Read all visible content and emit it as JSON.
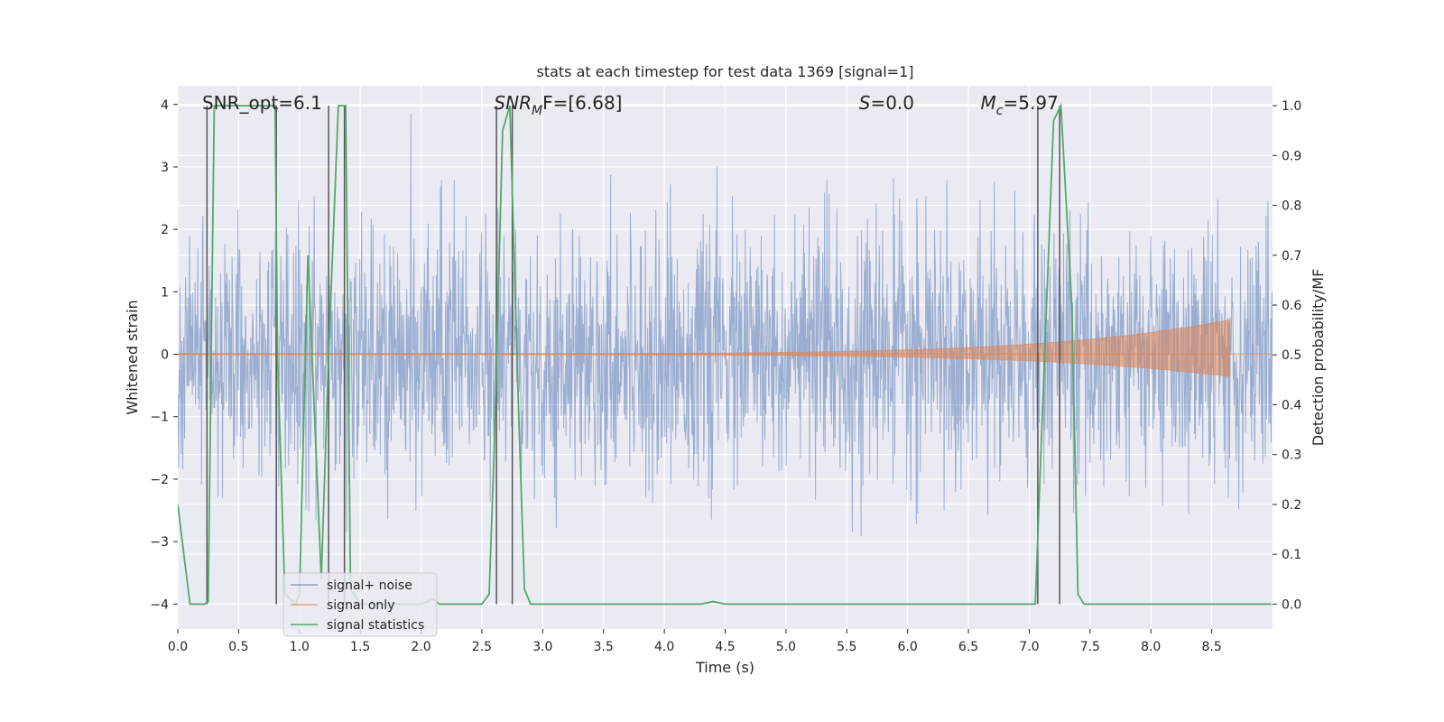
{
  "chart_data": {
    "type": "line",
    "title": "stats at each timestep for test data 1369 [signal=1]",
    "xlabel": "Time (s)",
    "ylabel": "Whitened strain",
    "ylabel_right": "Detection probability/MF",
    "xlim": [
      0.0,
      9.0
    ],
    "ylim": [
      -4.4,
      4.3
    ],
    "ylim_right": [
      -0.05,
      1.04
    ],
    "xticks": [
      0.0,
      0.5,
      1.0,
      1.5,
      2.0,
      2.5,
      3.0,
      3.5,
      4.0,
      4.5,
      5.0,
      5.5,
      6.0,
      6.5,
      7.0,
      7.5,
      8.0,
      8.5
    ],
    "xtick_labels": [
      "0.0",
      "0.5",
      "1.0",
      "1.5",
      "2.0",
      "2.5",
      "3.0",
      "3.5",
      "4.0",
      "4.5",
      "5.0",
      "5.5",
      "6.0",
      "6.5",
      "7.0",
      "7.5",
      "8.0",
      "8.5"
    ],
    "yticks": [
      -4,
      -3,
      -2,
      -1,
      0,
      1,
      2,
      3,
      4
    ],
    "ytick_labels": [
      "−4",
      "−3",
      "−2",
      "−1",
      "0",
      "1",
      "2",
      "3",
      "4"
    ],
    "yticks_right": [
      0.0,
      0.1,
      0.2,
      0.3,
      0.4,
      0.5,
      0.6,
      0.7,
      0.8,
      0.9,
      1.0
    ],
    "ytick_labels_right": [
      "0.0",
      "0.1",
      "0.2",
      "0.3",
      "0.4",
      "0.5",
      "0.6",
      "0.7",
      "0.8",
      "0.9",
      "1.0"
    ],
    "grid": true,
    "legend_position": "lower-left",
    "annotations": [
      {
        "text": "SNR_opt=6.1",
        "x": 0.2
      },
      {
        "text_main": "SNR",
        "text_sub": "M",
        "text_rest": "F=[6.68]",
        "x": 2.6
      },
      {
        "text_main": "S",
        "text_sub": "",
        "text_rest": "=0.0",
        "x": 5.6
      },
      {
        "text_main": "M",
        "text_sub": "c",
        "text_rest": "=5.97",
        "x": 6.6
      }
    ],
    "series": [
      {
        "name": "signal+ noise",
        "color": "#4c72b0",
        "style": "dense noise, std about 1.0, peaks between -4.0 and 3.9",
        "time_range": [
          0.0,
          9.0
        ]
      },
      {
        "name": "signal only",
        "color": "#dd8452",
        "style": "chirp, amplitude growing from 0.0 to 0.55, ending at 8.65",
        "time_range": [
          0.0,
          8.65
        ]
      },
      {
        "name": "signal statistics",
        "color": "#55a868",
        "axis": "right",
        "x": [
          0.0,
          0.05,
          0.1,
          0.22,
          0.25,
          0.3,
          0.8,
          0.82,
          0.88,
          0.97,
          1.0,
          1.07,
          1.18,
          1.24,
          1.32,
          1.38,
          1.42,
          1.5,
          2.0,
          2.1,
          2.15,
          2.25,
          2.5,
          2.56,
          2.6,
          2.67,
          2.73,
          2.8,
          2.85,
          2.9,
          4.3,
          4.4,
          4.5,
          7.05,
          7.08,
          7.2,
          7.26,
          7.35,
          7.4,
          7.45,
          8.99
        ],
        "y": [
          0.2,
          0.1,
          0.0,
          0.0,
          0.005,
          1.0,
          1.0,
          0.5,
          0.02,
          0.0,
          0.02,
          0.7,
          0.05,
          0.5,
          1.0,
          1.0,
          0.03,
          0.0,
          0.0,
          0.01,
          0.0,
          0.0,
          0.0,
          0.02,
          0.3,
          0.95,
          1.0,
          0.4,
          0.03,
          0.0,
          0.0,
          0.005,
          0.0,
          0.0,
          0.2,
          0.97,
          1.0,
          0.6,
          0.02,
          0.0,
          0.0
        ]
      }
    ],
    "vertical_markers": [
      0.24,
      0.81,
      1.24,
      1.37,
      2.62,
      2.75,
      7.07,
      7.25
    ]
  },
  "legend": {
    "items": [
      {
        "label": "signal+ noise",
        "color": "#4c72b0"
      },
      {
        "label": "signal only",
        "color": "#dd8452"
      },
      {
        "label": "signal statistics",
        "color": "#55a868"
      }
    ]
  }
}
